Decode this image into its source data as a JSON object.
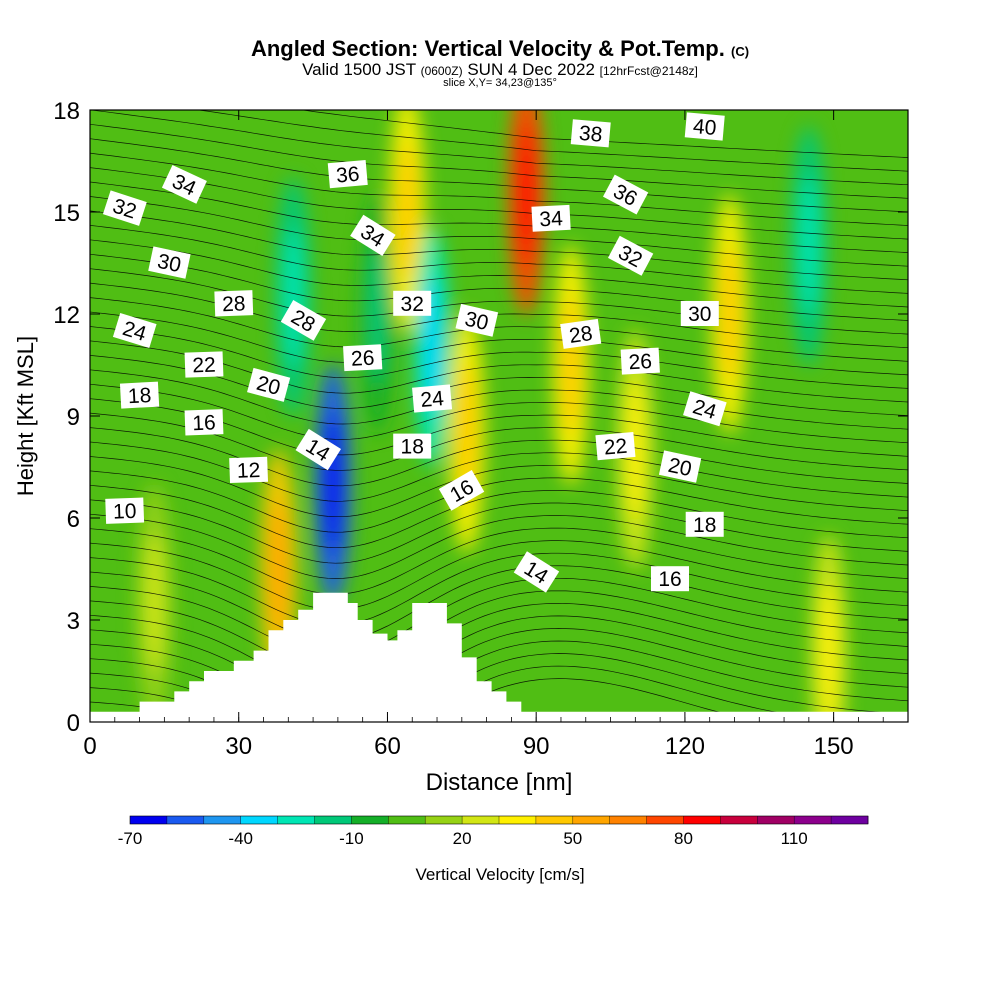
{
  "header": {
    "title": "Angled Section: Vertical Velocity & Pot.Temp.",
    "title_tag": "(C)",
    "valid_main": "Valid 1500 JST",
    "valid_z": "(0600Z)",
    "valid_date": "SUN 4 Dec 2022",
    "fcst": "[12hrFcst@2148z]",
    "slice": "slice X,Y= 34,23@135°"
  },
  "chart_data": {
    "type": "heatmap",
    "title": "Angled Section: Vertical Velocity & Pot.Temp.",
    "xlabel": "Distance [nm]",
    "ylabel": "Height [Kft MSL]",
    "xlim": [
      0,
      165
    ],
    "ylim": [
      0,
      18
    ],
    "xticks": [
      "0",
      "30",
      "60",
      "90",
      "120",
      "150"
    ],
    "yticks": [
      "0",
      "3",
      "6",
      "9",
      "12",
      "15",
      "18"
    ],
    "colorbar": {
      "label": "Vertical Velocity [cm/s]",
      "tick_labels": [
        "-70",
        "-40",
        "-10",
        "20",
        "50",
        "80",
        "110"
      ],
      "colors": [
        "#0000f0",
        "#1a5af0",
        "#1e96f0",
        "#00d7ff",
        "#00e6b4",
        "#00c878",
        "#14af28",
        "#50be14",
        "#96d214",
        "#d2e614",
        "#fff000",
        "#ffc800",
        "#ffa500",
        "#ff8200",
        "#ff4600",
        "#ff0000",
        "#c8003c",
        "#a00064",
        "#8c008c",
        "#6e00a0"
      ]
    },
    "velocity_features": [
      {
        "x": 13,
        "y": 3.5,
        "value": 5
      },
      {
        "x": 38,
        "y": 4.5,
        "value": 35
      },
      {
        "x": 41,
        "y": 12.5,
        "value": -30
      },
      {
        "x": 49,
        "y": 7.0,
        "value": -65
      },
      {
        "x": 58,
        "y": 12.0,
        "value": -20
      },
      {
        "x": 64,
        "y": 15.0,
        "value": 25
      },
      {
        "x": 69,
        "y": 11.0,
        "value": -40
      },
      {
        "x": 76,
        "y": 8.5,
        "value": 25
      },
      {
        "x": 88,
        "y": 15.5,
        "value": 60
      },
      {
        "x": 97,
        "y": 10.5,
        "value": 20
      },
      {
        "x": 110,
        "y": 8.0,
        "value": 15
      },
      {
        "x": 129,
        "y": 12.0,
        "value": 20
      },
      {
        "x": 145,
        "y": 14.0,
        "value": -30
      },
      {
        "x": 149,
        "y": 2.0,
        "value": 15
      }
    ],
    "terrain": [
      [
        0,
        0.3
      ],
      [
        10,
        0.3
      ],
      [
        10,
        0.6
      ],
      [
        17,
        0.6
      ],
      [
        17,
        0.9
      ],
      [
        20,
        0.9
      ],
      [
        20,
        1.2
      ],
      [
        23,
        1.2
      ],
      [
        23,
        1.5
      ],
      [
        29,
        1.5
      ],
      [
        29,
        1.8
      ],
      [
        33,
        1.8
      ],
      [
        33,
        2.1
      ],
      [
        36,
        2.1
      ],
      [
        36,
        2.7
      ],
      [
        39,
        2.7
      ],
      [
        39,
        3.0
      ],
      [
        42,
        3.0
      ],
      [
        42,
        3.3
      ],
      [
        45,
        3.3
      ],
      [
        45,
        3.8
      ],
      [
        52,
        3.8
      ],
      [
        52,
        3.5
      ],
      [
        54,
        3.5
      ],
      [
        54,
        3.0
      ],
      [
        57,
        3.0
      ],
      [
        57,
        2.6
      ],
      [
        60,
        2.6
      ],
      [
        60,
        2.4
      ],
      [
        62,
        2.4
      ],
      [
        62,
        2.7
      ],
      [
        65,
        2.7
      ],
      [
        65,
        3.5
      ],
      [
        72,
        3.5
      ],
      [
        72,
        2.9
      ],
      [
        75,
        2.9
      ],
      [
        75,
        1.9
      ],
      [
        78,
        1.9
      ],
      [
        78,
        1.2
      ],
      [
        81,
        1.2
      ],
      [
        81,
        0.9
      ],
      [
        84,
        0.9
      ],
      [
        84,
        0.6
      ],
      [
        87,
        0.6
      ],
      [
        87,
        0.3
      ],
      [
        165,
        0.3
      ]
    ],
    "theta_labels": [
      {
        "text": "10",
        "x": 7,
        "y": 6.2,
        "rot": -2
      },
      {
        "text": "12",
        "x": 32,
        "y": 7.4,
        "rot": -2
      },
      {
        "text": "14",
        "x": 46,
        "y": 8.0,
        "rot": 32
      },
      {
        "text": "14",
        "x": 90,
        "y": 4.4,
        "rot": 32
      },
      {
        "text": "16",
        "x": 23,
        "y": 8.8,
        "rot": -2
      },
      {
        "text": "16",
        "x": 75,
        "y": 6.8,
        "rot": -30
      },
      {
        "text": "16",
        "x": 117,
        "y": 4.2,
        "rot": 0
      },
      {
        "text": "18",
        "x": 10,
        "y": 9.6,
        "rot": -3
      },
      {
        "text": "18",
        "x": 65,
        "y": 8.1,
        "rot": 0
      },
      {
        "text": "18",
        "x": 124,
        "y": 5.8,
        "rot": 0
      },
      {
        "text": "20",
        "x": 36,
        "y": 9.9,
        "rot": 15
      },
      {
        "text": "20",
        "x": 119,
        "y": 7.5,
        "rot": 12
      },
      {
        "text": "22",
        "x": 23,
        "y": 10.5,
        "rot": -2
      },
      {
        "text": "22",
        "x": 106,
        "y": 8.1,
        "rot": -5
      },
      {
        "text": "24",
        "x": 9,
        "y": 11.5,
        "rot": 17
      },
      {
        "text": "24",
        "x": 69,
        "y": 9.5,
        "rot": -5
      },
      {
        "text": "24",
        "x": 124,
        "y": 9.2,
        "rot": 17
      },
      {
        "text": "26",
        "x": 55,
        "y": 10.7,
        "rot": -3
      },
      {
        "text": "26",
        "x": 111,
        "y": 10.6,
        "rot": -3
      },
      {
        "text": "28",
        "x": 29,
        "y": 12.3,
        "rot": -2
      },
      {
        "text": "28",
        "x": 43,
        "y": 11.8,
        "rot": 30
      },
      {
        "text": "28",
        "x": 99,
        "y": 11.4,
        "rot": -8
      },
      {
        "text": "30",
        "x": 16,
        "y": 13.5,
        "rot": 12
      },
      {
        "text": "30",
        "x": 78,
        "y": 11.8,
        "rot": 13
      },
      {
        "text": "30",
        "x": 123,
        "y": 12.0,
        "rot": 0
      },
      {
        "text": "32",
        "x": 7,
        "y": 15.1,
        "rot": 18
      },
      {
        "text": "32",
        "x": 65,
        "y": 12.3,
        "rot": 0
      },
      {
        "text": "32",
        "x": 109,
        "y": 13.7,
        "rot": 28
      },
      {
        "text": "34",
        "x": 19,
        "y": 15.8,
        "rot": 25
      },
      {
        "text": "34",
        "x": 57,
        "y": 14.3,
        "rot": 32
      },
      {
        "text": "34",
        "x": 93,
        "y": 14.8,
        "rot": -3
      },
      {
        "text": "36",
        "x": 52,
        "y": 16.1,
        "rot": -5
      },
      {
        "text": "36",
        "x": 108,
        "y": 15.5,
        "rot": 28
      },
      {
        "text": "38",
        "x": 101,
        "y": 17.3,
        "rot": 5
      },
      {
        "text": "40",
        "x": 124,
        "y": 17.5,
        "rot": 5
      }
    ]
  }
}
